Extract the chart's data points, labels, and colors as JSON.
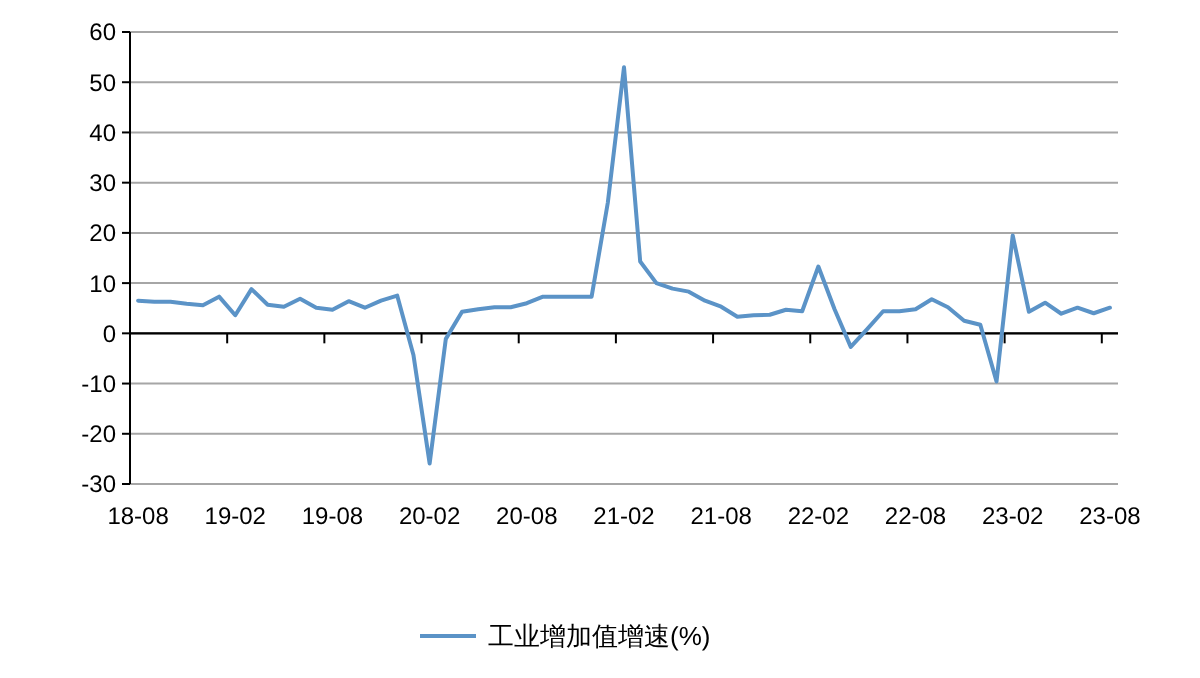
{
  "chart_data": {
    "type": "line",
    "categories": [
      "18-08",
      null,
      null,
      null,
      null,
      null,
      "19-02",
      null,
      null,
      null,
      null,
      null,
      "19-08",
      null,
      null,
      null,
      null,
      null,
      "20-02",
      null,
      null,
      null,
      null,
      null,
      "20-08",
      null,
      null,
      null,
      null,
      null,
      "21-02",
      null,
      null,
      null,
      null,
      null,
      "21-08",
      null,
      null,
      null,
      null,
      null,
      "22-02",
      null,
      null,
      null,
      null,
      null,
      "22-08",
      null,
      null,
      null,
      null,
      null,
      "23-02",
      null,
      null,
      null,
      null,
      null,
      "23-08"
    ],
    "series": [
      {
        "name": "工业增加值增速(%)",
        "color": "#5b93c7",
        "values": [
          6.5,
          6.3,
          6.3,
          5.9,
          5.6,
          7.3,
          3.6,
          8.8,
          5.7,
          5.3,
          6.9,
          5.1,
          4.7,
          6.4,
          5.1,
          6.5,
          7.5,
          -4.3,
          -25.9,
          -1.1,
          4.3,
          4.8,
          5.2,
          5.2,
          6.0,
          7.3,
          7.3,
          7.3,
          7.3,
          26,
          53,
          14.3,
          10.0,
          8.9,
          8.3,
          6.5,
          5.3,
          3.3,
          3.6,
          3.7,
          4.7,
          4.4,
          13.3,
          4.8,
          -2.7,
          0.8,
          4.4,
          4.4,
          4.8,
          6.8,
          5.2,
          2.5,
          1.7,
          -9.6,
          19.5,
          4.3,
          6.1,
          3.9,
          5.1,
          4.0,
          5.1
        ]
      }
    ],
    "ylim": [
      -30,
      60
    ],
    "yticks": [
      -30,
      -20,
      -10,
      0,
      10,
      20,
      30,
      40,
      50,
      60
    ],
    "grid": "y",
    "legend": "bottom",
    "marker": "none",
    "line_style": "solid"
  }
}
